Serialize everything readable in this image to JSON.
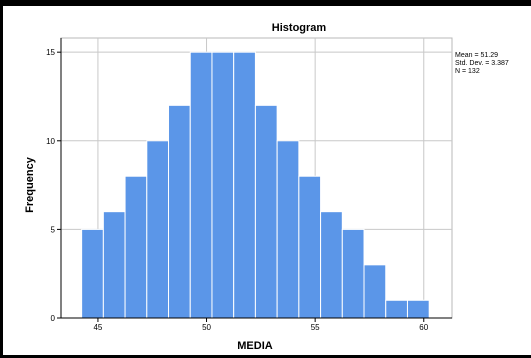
{
  "chart_data": {
    "type": "bar",
    "subtype": "histogram",
    "title": "Histogram",
    "xlabel": "MEDIA",
    "ylabel": "Frequency",
    "bin_width": 1,
    "bins": [
      {
        "start": 44.25,
        "end": 45.25,
        "count": 5
      },
      {
        "start": 45.25,
        "end": 46.25,
        "count": 6
      },
      {
        "start": 46.25,
        "end": 47.25,
        "count": 8
      },
      {
        "start": 47.25,
        "end": 48.25,
        "count": 10
      },
      {
        "start": 48.25,
        "end": 49.25,
        "count": 12
      },
      {
        "start": 49.25,
        "end": 50.25,
        "count": 15
      },
      {
        "start": 50.25,
        "end": 51.25,
        "count": 15
      },
      {
        "start": 51.25,
        "end": 52.25,
        "count": 15
      },
      {
        "start": 52.25,
        "end": 53.25,
        "count": 12
      },
      {
        "start": 53.25,
        "end": 54.25,
        "count": 10
      },
      {
        "start": 54.25,
        "end": 55.25,
        "count": 8
      },
      {
        "start": 55.25,
        "end": 56.25,
        "count": 6
      },
      {
        "start": 56.25,
        "end": 57.25,
        "count": 5
      },
      {
        "start": 57.25,
        "end": 58.25,
        "count": 3
      },
      {
        "start": 58.25,
        "end": 59.25,
        "count": 1
      },
      {
        "start": 59.25,
        "end": 60.25,
        "count": 1
      }
    ],
    "xlim": [
      43.3,
      61.3
    ],
    "ylim": [
      0,
      15.8
    ],
    "x_ticks": [
      45,
      50,
      55,
      60
    ],
    "y_ticks": [
      0,
      5,
      10,
      15
    ],
    "grid": true,
    "bar_color": "#5b96e8",
    "stats": [
      "Mean = 51.29",
      "Std. Dev. = 3.387",
      "N = 132"
    ]
  }
}
